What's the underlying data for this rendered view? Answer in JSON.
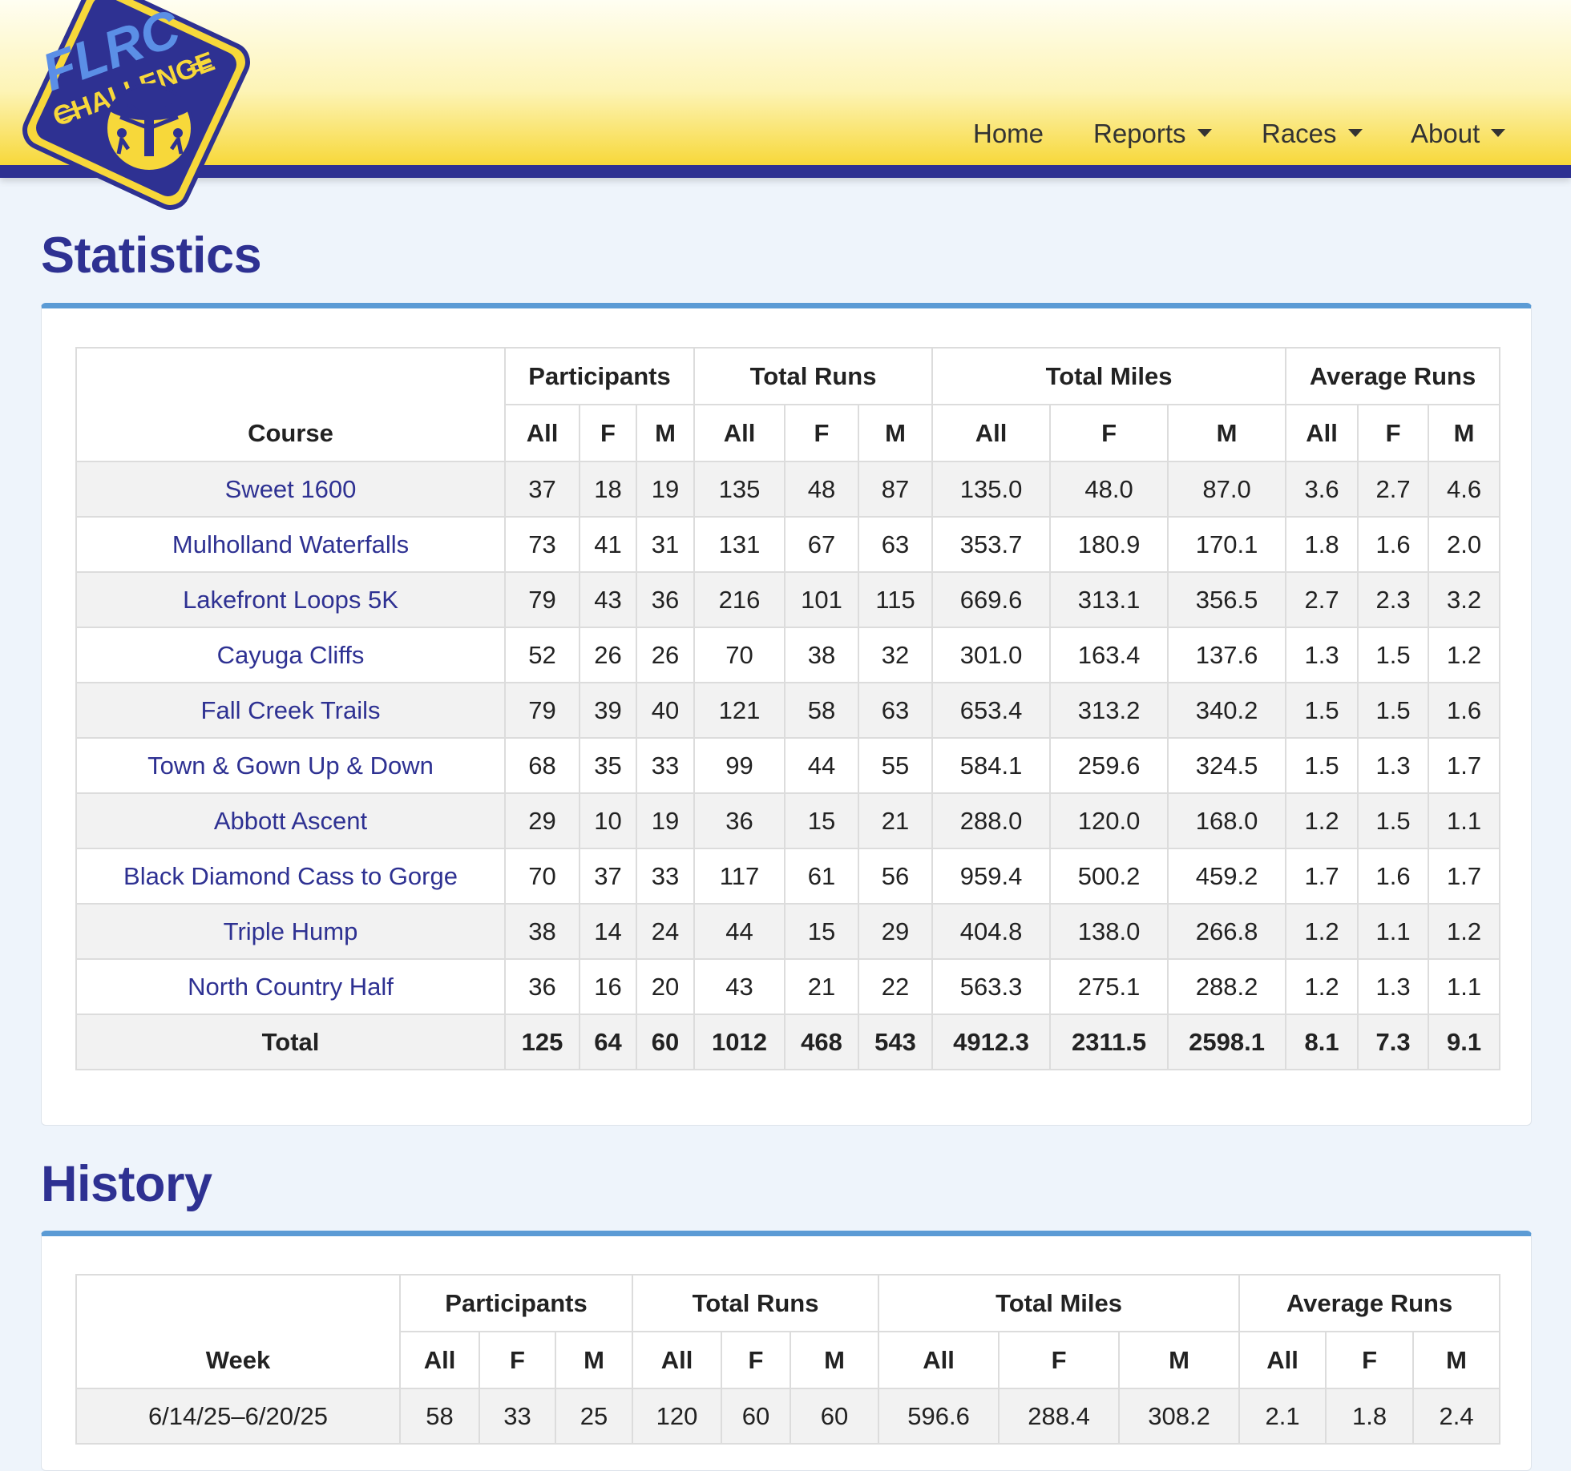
{
  "brand": {
    "logo_top_text": "FLRC",
    "logo_bottom_text": "CHALLENGE",
    "colors": {
      "navy": "#2e3192",
      "yellow": "#f7d83a",
      "accent_blue": "#5b9bd5"
    }
  },
  "nav": {
    "home": "Home",
    "reports": "Reports",
    "races": "Races",
    "about": "About"
  },
  "statistics": {
    "title": "Statistics",
    "headers": {
      "course": "Course",
      "participants": "Participants",
      "total_runs": "Total Runs",
      "total_miles": "Total Miles",
      "average_runs": "Average Runs",
      "all": "All",
      "f": "F",
      "m": "M"
    },
    "rows": [
      {
        "course": "Sweet 1600",
        "p_all": "37",
        "p_f": "18",
        "p_m": "19",
        "r_all": "135",
        "r_f": "48",
        "r_m": "87",
        "mi_all": "135.0",
        "mi_f": "48.0",
        "mi_m": "87.0",
        "a_all": "3.6",
        "a_f": "2.7",
        "a_m": "4.6"
      },
      {
        "course": "Mulholland Waterfalls",
        "p_all": "73",
        "p_f": "41",
        "p_m": "31",
        "r_all": "131",
        "r_f": "67",
        "r_m": "63",
        "mi_all": "353.7",
        "mi_f": "180.9",
        "mi_m": "170.1",
        "a_all": "1.8",
        "a_f": "1.6",
        "a_m": "2.0"
      },
      {
        "course": "Lakefront Loops 5K",
        "p_all": "79",
        "p_f": "43",
        "p_m": "36",
        "r_all": "216",
        "r_f": "101",
        "r_m": "115",
        "mi_all": "669.6",
        "mi_f": "313.1",
        "mi_m": "356.5",
        "a_all": "2.7",
        "a_f": "2.3",
        "a_m": "3.2"
      },
      {
        "course": "Cayuga Cliffs",
        "p_all": "52",
        "p_f": "26",
        "p_m": "26",
        "r_all": "70",
        "r_f": "38",
        "r_m": "32",
        "mi_all": "301.0",
        "mi_f": "163.4",
        "mi_m": "137.6",
        "a_all": "1.3",
        "a_f": "1.5",
        "a_m": "1.2"
      },
      {
        "course": "Fall Creek Trails",
        "p_all": "79",
        "p_f": "39",
        "p_m": "40",
        "r_all": "121",
        "r_f": "58",
        "r_m": "63",
        "mi_all": "653.4",
        "mi_f": "313.2",
        "mi_m": "340.2",
        "a_all": "1.5",
        "a_f": "1.5",
        "a_m": "1.6"
      },
      {
        "course": "Town & Gown Up & Down",
        "p_all": "68",
        "p_f": "35",
        "p_m": "33",
        "r_all": "99",
        "r_f": "44",
        "r_m": "55",
        "mi_all": "584.1",
        "mi_f": "259.6",
        "mi_m": "324.5",
        "a_all": "1.5",
        "a_f": "1.3",
        "a_m": "1.7"
      },
      {
        "course": "Abbott Ascent",
        "p_all": "29",
        "p_f": "10",
        "p_m": "19",
        "r_all": "36",
        "r_f": "15",
        "r_m": "21",
        "mi_all": "288.0",
        "mi_f": "120.0",
        "mi_m": "168.0",
        "a_all": "1.2",
        "a_f": "1.5",
        "a_m": "1.1"
      },
      {
        "course": "Black Diamond Cass to Gorge",
        "p_all": "70",
        "p_f": "37",
        "p_m": "33",
        "r_all": "117",
        "r_f": "61",
        "r_m": "56",
        "mi_all": "959.4",
        "mi_f": "500.2",
        "mi_m": "459.2",
        "a_all": "1.7",
        "a_f": "1.6",
        "a_m": "1.7"
      },
      {
        "course": "Triple Hump",
        "p_all": "38",
        "p_f": "14",
        "p_m": "24",
        "r_all": "44",
        "r_f": "15",
        "r_m": "29",
        "mi_all": "404.8",
        "mi_f": "138.0",
        "mi_m": "266.8",
        "a_all": "1.2",
        "a_f": "1.1",
        "a_m": "1.2"
      },
      {
        "course": "North Country Half",
        "p_all": "36",
        "p_f": "16",
        "p_m": "20",
        "r_all": "43",
        "r_f": "21",
        "r_m": "22",
        "mi_all": "563.3",
        "mi_f": "275.1",
        "mi_m": "288.2",
        "a_all": "1.2",
        "a_f": "1.3",
        "a_m": "1.1"
      }
    ],
    "total": {
      "label": "Total",
      "p_all": "125",
      "p_f": "64",
      "p_m": "60",
      "r_all": "1012",
      "r_f": "468",
      "r_m": "543",
      "mi_all": "4912.3",
      "mi_f": "2311.5",
      "mi_m": "2598.1",
      "a_all": "8.1",
      "a_f": "7.3",
      "a_m": "9.1"
    }
  },
  "history": {
    "title": "History",
    "headers": {
      "week": "Week",
      "participants": "Participants",
      "total_runs": "Total Runs",
      "total_miles": "Total Miles",
      "average_runs": "Average Runs",
      "all": "All",
      "f": "F",
      "m": "M"
    },
    "rows": [
      {
        "week": "6/14/25–6/20/25",
        "p_all": "58",
        "p_f": "33",
        "p_m": "25",
        "r_all": "120",
        "r_f": "60",
        "r_m": "60",
        "mi_all": "596.6",
        "mi_f": "288.4",
        "mi_m": "308.2",
        "a_all": "2.1",
        "a_f": "1.8",
        "a_m": "2.4"
      }
    ]
  }
}
